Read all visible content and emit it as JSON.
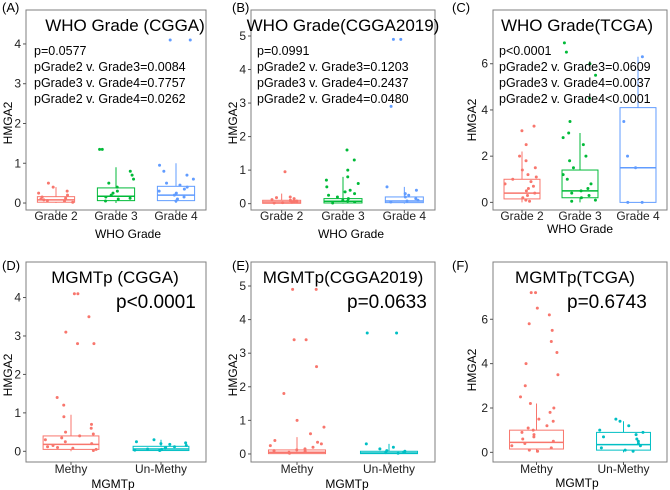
{
  "figure": {
    "type": "multi-panel boxplot with jittered points"
  },
  "chart_data": [
    {
      "panel_label": "(A)",
      "type": "boxplot",
      "title": "WHO Grade (CGGA)",
      "xlabel": "WHO Grade",
      "ylabel": "HMGA2",
      "categories": [
        "Grade 2",
        "Grade 3",
        "Grade 4"
      ],
      "colors": [
        "#f8766d",
        "#00ba38",
        "#619cff"
      ],
      "ylim": [
        -0.1,
        4.2
      ],
      "yticks": [
        0,
        1,
        2,
        3,
        4
      ],
      "stats": [
        "p=0.0577",
        "pGrade2 v. Grade3=0.0084",
        "pGrade3 v. Grade4=0.7757",
        "pGrade2 v. Grade4=0.0262"
      ],
      "boxes": [
        {
          "min": 0.0,
          "q1": 0.02,
          "median": 0.08,
          "q3": 0.16,
          "max": 0.4
        },
        {
          "min": 0.0,
          "q1": 0.06,
          "median": 0.17,
          "q3": 0.38,
          "max": 0.9
        },
        {
          "min": 0.0,
          "q1": 0.06,
          "median": 0.2,
          "q3": 0.42,
          "max": 1.0
        }
      ],
      "points": [
        [
          0.05,
          0.1,
          0.4,
          0.2,
          0.08,
          0.3,
          0.15,
          0.02,
          0.5,
          0.12,
          0.25,
          0.06
        ],
        [
          0.1,
          0.2,
          0.5,
          0.3,
          1.35,
          1.35,
          0.8,
          0.05,
          0.25,
          0.6,
          0.15,
          0.4,
          0.7,
          0.12
        ],
        [
          0.2,
          4.1,
          4.1,
          0.95,
          0.7,
          0.3,
          0.1,
          0.5,
          0.25,
          0.4,
          0.15,
          0.6,
          0.05,
          0.35,
          0.8,
          0.45
        ]
      ]
    },
    {
      "panel_label": "(B)",
      "type": "boxplot",
      "title": "WHO Grade(CGGA2019)",
      "xlabel": "WHO Grade",
      "ylabel": "HMGA2",
      "categories": [
        "Grade 2",
        "Grade 3",
        "Grade 4"
      ],
      "colors": [
        "#f8766d",
        "#00ba38",
        "#619cff"
      ],
      "ylim": [
        -0.1,
        5.0
      ],
      "yticks": [
        0,
        1,
        2,
        3,
        4,
        5
      ],
      "stats": [
        "p=0.0991",
        "pGrade2 v. Grade3=0.1203",
        "pGrade3 v. Grade4=0.2437",
        "pGrade2 v. Grade4=0.0480"
      ],
      "boxes": [
        {
          "min": 0.0,
          "q1": 0.01,
          "median": 0.05,
          "q3": 0.1,
          "max": 0.3
        },
        {
          "min": 0.0,
          "q1": 0.02,
          "median": 0.07,
          "q3": 0.15,
          "max": 0.8
        },
        {
          "min": 0.0,
          "q1": 0.03,
          "median": 0.08,
          "q3": 0.2,
          "max": 0.5
        }
      ],
      "points": [
        [
          0.95,
          0.05,
          0.1,
          0.2,
          0.03,
          0.15,
          0.08,
          0.12,
          0.02,
          0.06,
          0.18,
          0.04
        ],
        [
          1.6,
          1.3,
          1.0,
          0.8,
          0.6,
          0.4,
          0.25,
          0.1,
          0.05,
          0.15,
          0.3,
          0.5,
          0.02,
          0.7,
          0.08,
          0.2,
          0.35
        ],
        [
          4.9,
          4.9,
          2.9,
          0.5,
          0.3,
          0.1,
          0.2,
          0.05,
          0.4,
          0.15,
          0.25,
          0.08
        ]
      ]
    },
    {
      "panel_label": "(C)",
      "type": "boxplot",
      "title": "WHO Grade(TCGA)",
      "xlabel": "WHO Grade",
      "ylabel": "HMGA2",
      "categories": [
        "Grade 2",
        "Grade 3",
        "Grade 4"
      ],
      "colors": [
        "#f8766d",
        "#00ba38",
        "#619cff"
      ],
      "ylim": [
        -0.2,
        7.2
      ],
      "yticks": [
        0,
        2,
        4,
        6
      ],
      "stats": [
        "p<0.0001",
        "pGrade2 v. Grade3=0.0609",
        "pGrade3 v. Grade4=0.0037",
        "pGrade2 v. Grade4<0.0001"
      ],
      "boxes": [
        {
          "min": 0.0,
          "q1": 0.15,
          "median": 0.4,
          "q3": 1.0,
          "max": 2.2
        },
        {
          "min": 0.0,
          "q1": 0.2,
          "median": 0.5,
          "q3": 1.4,
          "max": 3.0
        },
        {
          "min": 0.0,
          "q1": 0.0,
          "median": 1.5,
          "q3": 4.1,
          "max": 6.3
        }
      ],
      "points": [
        [
          3.3,
          3.1,
          2.5,
          2.0,
          1.8,
          1.5,
          1.2,
          1.0,
          0.8,
          0.6,
          0.5,
          0.4,
          0.3,
          0.2,
          0.1,
          0.05,
          0.7,
          0.9,
          1.1,
          1.4
        ],
        [
          6.9,
          6.5,
          6.0,
          5.5,
          4.5,
          3.5,
          3.0,
          2.5,
          2.0,
          1.5,
          1.2,
          1.0,
          0.8,
          0.6,
          0.5,
          0.4,
          0.3,
          0.2,
          0.1,
          0.05,
          1.8,
          2.8
        ],
        [
          6.3,
          3.5,
          2.0,
          1.5,
          0.0,
          0.0
        ]
      ]
    },
    {
      "panel_label": "(D)",
      "type": "boxplot",
      "title": "MGMTp (CGGA)",
      "xlabel": "MGMTp",
      "ylabel": "HMGA2",
      "categories": [
        "Methy",
        "Un-Methy"
      ],
      "colors": [
        "#f8766d",
        "#00bfc4"
      ],
      "ylim": [
        -0.2,
        4.3
      ],
      "yticks": [
        0,
        1,
        2,
        3,
        4
      ],
      "stats": [
        "p<0.0001"
      ],
      "boxes": [
        {
          "min": 0.0,
          "q1": 0.05,
          "median": 0.18,
          "q3": 0.4,
          "max": 0.95
        },
        {
          "min": 0.0,
          "q1": 0.02,
          "median": 0.06,
          "q3": 0.13,
          "max": 0.3
        }
      ],
      "points": [
        [
          4.1,
          4.1,
          3.5,
          3.1,
          2.8,
          2.8,
          1.4,
          1.2,
          0.9,
          0.7,
          0.6,
          0.5,
          0.4,
          0.3,
          0.25,
          0.2,
          0.15,
          0.1,
          0.05,
          0.02,
          0.35,
          0.45,
          0.12,
          0.08
        ],
        [
          0.3,
          0.25,
          0.2,
          0.15,
          0.1,
          0.08,
          0.05,
          0.02,
          0.12,
          0.18,
          0.22,
          0.06,
          0.03
        ]
      ]
    },
    {
      "panel_label": "(E)",
      "type": "boxplot",
      "title": "MGMTp(CGGA2019)",
      "xlabel": "MGMTp",
      "ylabel": "HMGA2",
      "categories": [
        "Methy",
        "Un-Methy"
      ],
      "colors": [
        "#f8766d",
        "#00bfc4"
      ],
      "ylim": [
        -0.15,
        5.0
      ],
      "yticks": [
        0,
        1,
        2,
        3,
        4,
        5
      ],
      "stats": [
        "p=0.0633"
      ],
      "boxes": [
        {
          "min": 0.0,
          "q1": 0.01,
          "median": 0.05,
          "q3": 0.12,
          "max": 0.5
        },
        {
          "min": 0.0,
          "q1": 0.01,
          "median": 0.03,
          "q3": 0.08,
          "max": 0.3
        }
      ],
      "points": [
        [
          4.9,
          4.9,
          3.4,
          3.4,
          2.6,
          1.8,
          1.0,
          0.8,
          0.6,
          0.4,
          0.3,
          0.2,
          0.15,
          0.1,
          0.05,
          0.02,
          0.08,
          0.25,
          0.12,
          0.35
        ],
        [
          3.6,
          3.6,
          0.3,
          0.2,
          0.1,
          0.05,
          0.02,
          0.15,
          0.08,
          0.04
        ]
      ]
    },
    {
      "panel_label": "(F)",
      "type": "boxplot",
      "title": "MGMTp(TCGA)",
      "xlabel": "MGMTp",
      "ylabel": "HMGA2",
      "categories": [
        "Methy",
        "Un-Methy"
      ],
      "colors": [
        "#f8766d",
        "#00bfc4"
      ],
      "ylim": [
        -0.3,
        7.5
      ],
      "yticks": [
        0,
        2,
        4,
        6
      ],
      "stats": [
        "p=0.6743"
      ],
      "boxes": [
        {
          "min": 0.0,
          "q1": 0.15,
          "median": 0.45,
          "q3": 1.0,
          "max": 2.2
        },
        {
          "min": 0.0,
          "q1": 0.1,
          "median": 0.35,
          "q3": 0.9,
          "max": 1.4
        }
      ],
      "points": [
        [
          7.2,
          7.2,
          6.5,
          6.2,
          5.8,
          5.5,
          5.0,
          4.5,
          4.0,
          3.5,
          3.0,
          2.5,
          2.2,
          2.0,
          1.8,
          1.5,
          1.2,
          1.0,
          0.8,
          0.6,
          0.5,
          0.4,
          0.3,
          0.2,
          0.1,
          0.05,
          0.7,
          0.9,
          1.1,
          1.4
        ],
        [
          1.5,
          1.4,
          1.2,
          1.0,
          0.8,
          0.6,
          0.5,
          0.4,
          0.3,
          0.2,
          0.1,
          0.05,
          0.7,
          0.9
        ]
      ]
    }
  ]
}
